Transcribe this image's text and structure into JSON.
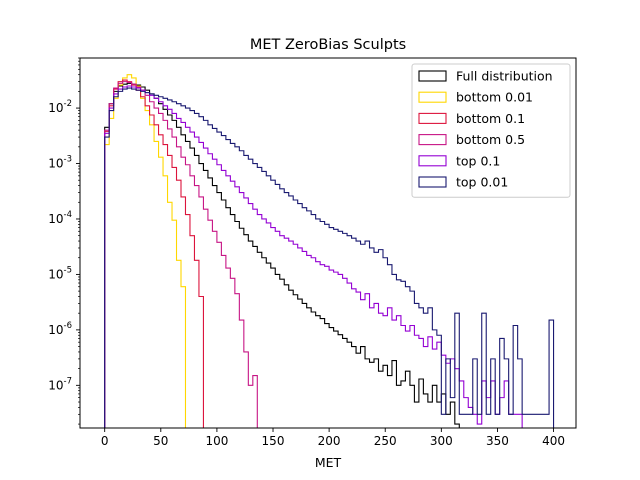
{
  "chart_data": {
    "type": "line",
    "step_histogram": true,
    "title": "MET ZeroBias Sculpts",
    "xlabel": "MET",
    "ylabel": "",
    "xlim": [
      -22,
      420
    ],
    "ylim": [
      1.7e-08,
      0.08
    ],
    "y_scale": "log",
    "grid": false,
    "legend_position": "top-right",
    "x_ticks": [
      0,
      50,
      100,
      150,
      200,
      250,
      300,
      350,
      400
    ],
    "x_tick_labels": [
      "0",
      "50",
      "100",
      "150",
      "200",
      "250",
      "300",
      "350",
      "400"
    ],
    "y_tick_exponents": [
      -7,
      -6,
      -5,
      -4,
      -3,
      -2
    ],
    "y_tick_base": "10",
    "series": [
      {
        "name": "Full distribution",
        "color": "#000000",
        "edges": [
          0,
          4,
          8,
          12,
          16,
          20,
          24,
          28,
          32,
          36,
          40,
          44,
          48,
          52,
          56,
          60,
          64,
          68,
          72,
          76,
          80,
          84,
          88,
          92,
          96,
          100,
          104,
          108,
          112,
          116,
          120,
          124,
          128,
          132,
          136,
          140,
          144,
          148,
          152,
          156,
          160,
          164,
          168,
          172,
          176,
          180,
          184,
          188,
          192,
          196,
          200,
          204,
          208,
          212,
          216,
          220,
          224,
          228,
          232,
          236,
          240,
          244,
          248,
          252,
          256,
          260,
          264,
          268,
          272,
          276,
          280,
          284,
          288,
          292,
          296,
          300,
          304,
          308,
          312,
          316
        ],
        "values": [
          0.0045,
          0.012,
          0.02,
          0.025,
          0.027,
          0.028,
          0.027,
          0.026,
          0.024,
          0.021,
          0.018,
          0.015,
          0.012,
          0.0095,
          0.0075,
          0.006,
          0.0045,
          0.0033,
          0.0025,
          0.0019,
          0.0014,
          0.001,
          0.00075,
          0.00055,
          0.0004,
          0.0003,
          0.00022,
          0.00016,
          0.00012,
          9e-05,
          6.8e-05,
          5.2e-05,
          4e-05,
          3.2e-05,
          2.5e-05,
          2e-05,
          1.6e-05,
          1.3e-05,
          1e-05,
          8.2e-06,
          6.5e-06,
          5.2e-06,
          4.3e-06,
          3.6e-06,
          3e-06,
          2.5e-06,
          2.1e-06,
          1.8e-06,
          1.6e-06,
          1.3e-06,
          1.1e-06,
          9.5e-07,
          8.2e-07,
          7e-07,
          6e-07,
          5e-07,
          3.8e-07,
          5e-07,
          3e-07,
          2.6e-07,
          3e-07,
          1.8e-07,
          2.3e-07,
          1.5e-07,
          2.8e-07,
          1e-07,
          1.2e-07,
          1.8e-07,
          1e-07,
          5e-08,
          1.3e-07,
          7e-08,
          5e-08,
          1e-07,
          5e-08,
          7e-08,
          3e-08,
          5e-08,
          2e-08
        ]
      },
      {
        "name": "bottom 0.01",
        "color": "#ffd700",
        "edges": [
          0,
          4,
          8,
          12,
          16,
          20,
          24,
          28,
          32,
          36,
          40,
          44,
          48,
          52,
          56,
          60,
          64,
          68,
          72
        ],
        "values": [
          0.0022,
          0.0065,
          0.015,
          0.026,
          0.035,
          0.04,
          0.035,
          0.025,
          0.015,
          0.009,
          0.005,
          0.0025,
          0.0013,
          0.0006,
          0.0002,
          9.5e-05,
          1.8e-05,
          6e-06
        ]
      },
      {
        "name": "bottom 0.1",
        "color": "#dc143c",
        "edges": [
          0,
          4,
          8,
          12,
          16,
          20,
          24,
          28,
          32,
          36,
          40,
          44,
          48,
          52,
          56,
          60,
          64,
          68,
          72,
          76,
          80,
          84,
          88
        ],
        "values": [
          0.0038,
          0.011,
          0.022,
          0.03,
          0.032,
          0.03,
          0.026,
          0.021,
          0.016,
          0.011,
          0.0075,
          0.005,
          0.0033,
          0.0022,
          0.0014,
          0.00085,
          0.0005,
          0.00025,
          0.00012,
          5e-05,
          1.8e-05,
          4e-06
        ]
      },
      {
        "name": "bottom 0.5",
        "color": "#c71585",
        "edges": [
          0,
          4,
          8,
          12,
          16,
          20,
          24,
          28,
          32,
          36,
          40,
          44,
          48,
          52,
          56,
          60,
          64,
          68,
          72,
          76,
          80,
          84,
          88,
          92,
          96,
          100,
          104,
          108,
          112,
          116,
          120,
          124,
          128,
          132,
          136
        ],
        "values": [
          0.004,
          0.012,
          0.023,
          0.028,
          0.03,
          0.029,
          0.027,
          0.024,
          0.021,
          0.017,
          0.013,
          0.01,
          0.008,
          0.006,
          0.0042,
          0.003,
          0.002,
          0.0013,
          0.00095,
          0.0006,
          0.0004,
          0.00025,
          0.00015,
          9.5e-05,
          6e-05,
          3.8e-05,
          2.2e-05,
          1.3e-05,
          8.5e-06,
          4.5e-06,
          1.5e-06,
          4e-07,
          1e-07,
          1.5e-07
        ]
      },
      {
        "name": "top 0.1",
        "color": "#9400d3",
        "edges": [
          0,
          4,
          8,
          12,
          16,
          20,
          24,
          28,
          32,
          36,
          40,
          44,
          48,
          52,
          56,
          60,
          64,
          68,
          72,
          76,
          80,
          84,
          88,
          92,
          96,
          100,
          104,
          108,
          112,
          116,
          120,
          124,
          128,
          132,
          136,
          140,
          144,
          148,
          152,
          156,
          160,
          164,
          168,
          172,
          176,
          180,
          184,
          188,
          192,
          196,
          200,
          204,
          208,
          212,
          216,
          220,
          224,
          228,
          232,
          236,
          240,
          244,
          248,
          252,
          256,
          260,
          264,
          268,
          272,
          276,
          280,
          284,
          288,
          292,
          296,
          300,
          304,
          308,
          312,
          316,
          320,
          324,
          328,
          332,
          336,
          340,
          344,
          348,
          352,
          356,
          360,
          364,
          368,
          372
        ],
        "values": [
          0.0035,
          0.01,
          0.018,
          0.022,
          0.024,
          0.025,
          0.024,
          0.023,
          0.021,
          0.019,
          0.017,
          0.015,
          0.013,
          0.011,
          0.0095,
          0.008,
          0.0065,
          0.0055,
          0.0045,
          0.0037,
          0.003,
          0.0024,
          0.0019,
          0.0015,
          0.0012,
          0.00095,
          0.00075,
          0.0006,
          0.00048,
          0.00038,
          0.0003,
          0.00024,
          0.00019,
          0.00015,
          0.00012,
          0.0001,
          8.5e-05,
          7e-05,
          6e-05,
          5e-05,
          4.5e-05,
          4e-05,
          3.5e-05,
          3e-05,
          2.6e-05,
          2.2e-05,
          2e-05,
          1.7e-05,
          1.5e-05,
          1.4e-05,
          1.2e-05,
          1.1e-05,
          1e-05,
          8.5e-06,
          7e-06,
          5.5e-06,
          4.8e-06,
          3.5e-06,
          4.5e-06,
          2.5e-06,
          3e-06,
          2e-06,
          1.8e-06,
          2.5e-06,
          1.5e-06,
          1.8e-06,
          1.2e-06,
          9.5e-07,
          1.2e-06,
          8e-07,
          7e-07,
          5e-07,
          7.5e-07,
          4.5e-07,
          6e-07,
          3.5e-07,
          2.5e-07,
          3e-07,
          2e-07,
          1.2e-07,
          6e-08,
          4e-08,
          3e-08,
          2e-08,
          1.2e-07,
          6e-08,
          1.2e-07,
          3e-08,
          6e-08,
          1.2e-07,
          3e-08,
          3e-08,
          3e-08
        ]
      },
      {
        "name": "top 0.01",
        "color": "#191970",
        "edges": [
          0,
          4,
          8,
          12,
          16,
          20,
          24,
          28,
          32,
          36,
          40,
          44,
          48,
          52,
          56,
          60,
          64,
          68,
          72,
          76,
          80,
          84,
          88,
          92,
          96,
          100,
          104,
          108,
          112,
          116,
          120,
          124,
          128,
          132,
          136,
          140,
          144,
          148,
          152,
          156,
          160,
          164,
          168,
          172,
          176,
          180,
          184,
          188,
          192,
          196,
          200,
          204,
          208,
          212,
          216,
          220,
          224,
          228,
          232,
          236,
          240,
          244,
          248,
          252,
          256,
          260,
          264,
          268,
          272,
          276,
          280,
          284,
          288,
          292,
          296,
          300,
          304,
          308,
          312,
          316,
          320,
          324,
          328,
          332,
          336,
          340,
          344,
          348,
          352,
          356,
          360,
          364,
          368,
          372,
          376,
          380,
          384,
          388,
          392,
          396,
          400
        ],
        "values": [
          0.003,
          0.009,
          0.016,
          0.02,
          0.022,
          0.023,
          0.022,
          0.021,
          0.02,
          0.019,
          0.018,
          0.017,
          0.016,
          0.015,
          0.014,
          0.013,
          0.012,
          0.011,
          0.01,
          0.009,
          0.008,
          0.007,
          0.006,
          0.005,
          0.0043,
          0.0037,
          0.0032,
          0.0027,
          0.0023,
          0.002,
          0.0017,
          0.0014,
          0.0012,
          0.001,
          0.00085,
          0.00072,
          0.0006,
          0.0005,
          0.00042,
          0.00035,
          0.0003,
          0.00026,
          0.00022,
          0.00019,
          0.00016,
          0.00014,
          0.00012,
          0.0001,
          9e-05,
          8e-05,
          7e-05,
          6.5e-05,
          6e-05,
          5.5e-05,
          5e-05,
          4.5e-05,
          4e-05,
          3.5e-05,
          4e-05,
          3e-05,
          2.5e-05,
          2.8e-05,
          2e-05,
          1.5e-05,
          1e-05,
          8e-06,
          7.5e-06,
          6e-06,
          5e-06,
          3e-06,
          2.5e-06,
          2e-06,
          2.5e-06,
          1e-06,
          8e-07,
          3e-08,
          3e-07,
          6e-08,
          2e-06,
          3e-08,
          3e-08,
          3e-08,
          3e-07,
          3e-08,
          2e-06,
          3e-08,
          3e-07,
          3e-08,
          7e-07,
          3e-07,
          3e-08,
          1.2e-06,
          3e-07,
          3e-08,
          3e-08,
          3e-08,
          3e-08,
          3e-08,
          3e-08,
          1.5e-06
        ]
      }
    ]
  }
}
